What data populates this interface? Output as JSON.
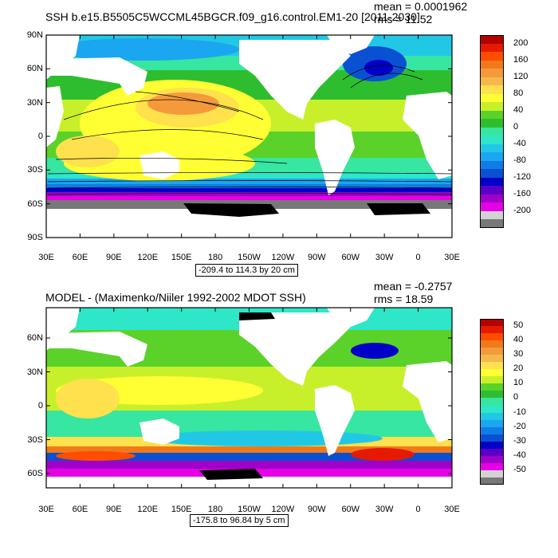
{
  "panels": [
    {
      "title": "SSH b.e15.B5505C5WCCML45BGCR.f09_g16.control.EM1-20 [2011-2030]",
      "mean_label": "mean = 0.0001962",
      "rms_label": "rms = 11.52",
      "range_label": "-209.4 to 114.3 by 20 cm",
      "lat_ticks": [
        "90N",
        "60N",
        "30N",
        "0",
        "30S",
        "60S",
        "90S"
      ],
      "lon_ticks": [
        "30E",
        "60E",
        "90E",
        "120E",
        "150E",
        "180",
        "150W",
        "120W",
        "90W",
        "60W",
        "30W",
        "0",
        "30E"
      ],
      "colorbar_labels": [
        "200",
        "160",
        "120",
        "80",
        "40",
        "0",
        "-40",
        "-80",
        "-120",
        "-160",
        "-200"
      ]
    },
    {
      "title": "MODEL - (Maximenko/Niiler 1992-2002 MDOT SSH)",
      "mean_label": "mean = -0.2757",
      "rms_label": "rms = 18.59",
      "range_label": "-175.8 to 96.84 by 5 cm",
      "lat_ticks": [
        "60N",
        "30N",
        "0",
        "30S",
        "60S"
      ],
      "lon_ticks": [
        "30E",
        "60E",
        "90E",
        "120E",
        "150E",
        "180",
        "150W",
        "120W",
        "90W",
        "60W",
        "30W",
        "0",
        "30E"
      ],
      "colorbar_labels": [
        "50",
        "40",
        "30",
        "20",
        "10",
        "0",
        "-10",
        "-20",
        "-30",
        "-40",
        "-50"
      ]
    }
  ],
  "colors": {
    "top_bar": [
      "#b30000",
      "#e61a00",
      "#ff4d00",
      "#f07a1a",
      "#f59a3a",
      "#f5b84d",
      "#ffe04d",
      "#ffff33",
      "#c8f02a",
      "#5ad22a",
      "#2ebd2e",
      "#37e6a0",
      "#2ee6c8",
      "#21c8e6",
      "#1aa6f0",
      "#0f7de6",
      "#0a50d2",
      "#0000c8",
      "#5a00c8",
      "#a000c8",
      "#e600e6",
      "#d2d2d2",
      "#787878"
    ],
    "bottom_bar": [
      "#b30000",
      "#e61a00",
      "#ff4d00",
      "#f07a1a",
      "#f59a3a",
      "#f5b84d",
      "#ffe04d",
      "#ffff33",
      "#c8f02a",
      "#5ad22a",
      "#2ebd2e",
      "#37e6a0",
      "#2ee6c8",
      "#21c8e6",
      "#1aa6f0",
      "#0f7de6",
      "#0a50d2",
      "#0000c8",
      "#5a00c8",
      "#a000c8",
      "#e600e6",
      "#d2d2d2",
      "#787878"
    ]
  }
}
